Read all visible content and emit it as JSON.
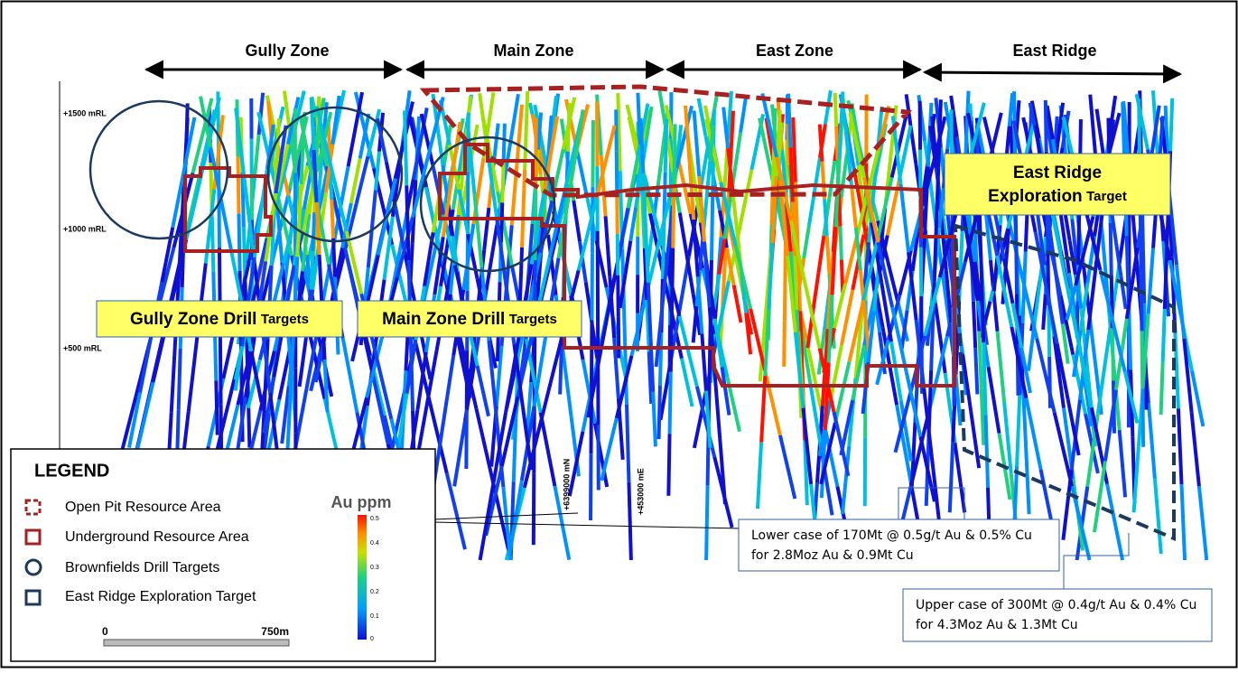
{
  "zones": [
    "Gully Zone",
    "Main Zone",
    "East Zone",
    "East Ridge"
  ],
  "elevations": [
    "+1500 mRL",
    "+1000 mRL",
    "+500 mRL"
  ],
  "coordinates": [
    "+6399000 mN",
    "+453000 mE"
  ],
  "drill_targets": [
    {
      "bold": "Gully Zone Drill",
      "rest": "Targets"
    },
    {
      "bold": "Main Zone Drill",
      "rest": "Targets"
    }
  ],
  "east_ridge_target": {
    "line1": "East Ridge",
    "bold": "Exploration",
    "rest": "Target"
  },
  "legend": {
    "title": "LEGEND",
    "items": [
      "Open Pit Resource Area",
      "Underground Resource Area",
      "Brownfields Drill Targets",
      "East Ridge Exploration Target"
    ],
    "colorbar": {
      "title": "Au ppm",
      "ticks": [
        "0.5",
        "0.4",
        "0.3",
        "0.2",
        "0.1",
        "0"
      ]
    },
    "scale": {
      "start": "0",
      "end": "750m"
    }
  },
  "callouts": {
    "lower": [
      "Lower case of 170Mt @ 0.5g/t Au & 0.5% Cu",
      "for 2.8Moz Au & 0.9Mt Cu"
    ],
    "upper": [
      "Upper case of 300Mt @ 0.4g/t Au & 0.4% Cu",
      "for 4.3Moz Au & 1.3Mt Cu"
    ]
  }
}
